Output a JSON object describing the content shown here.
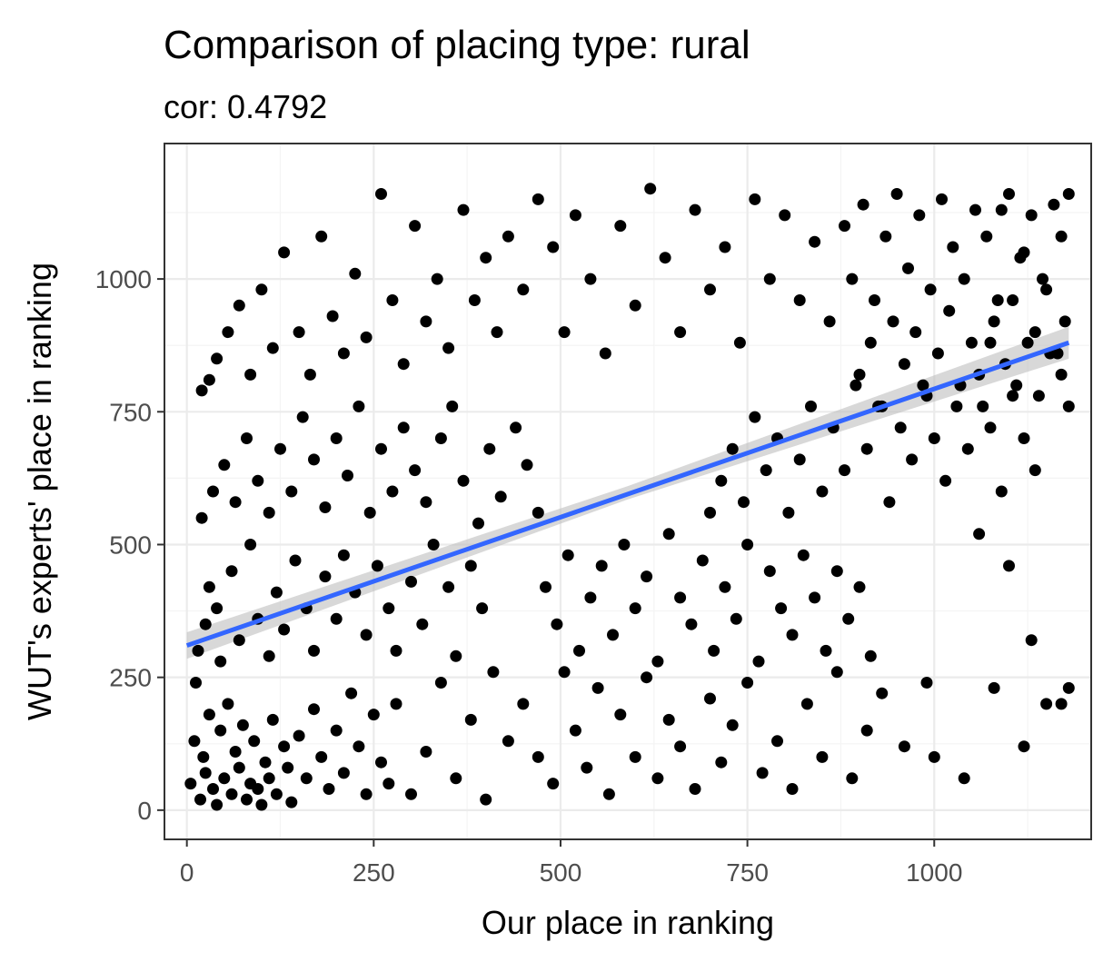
{
  "chart_data": {
    "type": "scatter",
    "title": "Comparison of placing type: rural",
    "subtitle": "cor: 0.4792",
    "xlabel": "Our place in ranking",
    "ylabel": "WUT's experts' place in ranking",
    "xlim": [
      -30,
      1210
    ],
    "ylim": [
      -55,
      1255
    ],
    "x_ticks": [
      0,
      250,
      500,
      750,
      1000
    ],
    "x_tick_labels": [
      "0",
      "250",
      "500",
      "750",
      "1000"
    ],
    "y_ticks": [
      0,
      250,
      500,
      750,
      1000
    ],
    "y_tick_labels": [
      "0",
      "250",
      "500",
      "750",
      "1000"
    ],
    "grid": true,
    "points": [
      [
        5,
        50
      ],
      [
        10,
        130
      ],
      [
        12,
        240
      ],
      [
        18,
        20
      ],
      [
        22,
        100
      ],
      [
        25,
        70
      ],
      [
        30,
        180
      ],
      [
        35,
        40
      ],
      [
        40,
        10
      ],
      [
        45,
        150
      ],
      [
        50,
        60
      ],
      [
        55,
        200
      ],
      [
        60,
        30
      ],
      [
        65,
        110
      ],
      [
        70,
        80
      ],
      [
        75,
        160
      ],
      [
        80,
        20
      ],
      [
        85,
        50
      ],
      [
        90,
        130
      ],
      [
        95,
        40
      ],
      [
        100,
        10
      ],
      [
        105,
        90
      ],
      [
        110,
        60
      ],
      [
        115,
        170
      ],
      [
        120,
        30
      ],
      [
        130,
        120
      ],
      [
        135,
        80
      ],
      [
        140,
        15
      ],
      [
        150,
        140
      ],
      [
        160,
        60
      ],
      [
        170,
        190
      ],
      [
        180,
        100
      ],
      [
        190,
        40
      ],
      [
        200,
        150
      ],
      [
        210,
        70
      ],
      [
        220,
        220
      ],
      [
        230,
        120
      ],
      [
        240,
        30
      ],
      [
        250,
        180
      ],
      [
        260,
        90
      ],
      [
        270,
        50
      ],
      [
        280,
        200
      ],
      [
        300,
        30
      ],
      [
        320,
        110
      ],
      [
        340,
        240
      ],
      [
        360,
        60
      ],
      [
        380,
        170
      ],
      [
        400,
        20
      ],
      [
        410,
        260
      ],
      [
        430,
        130
      ],
      [
        15,
        300
      ],
      [
        25,
        350
      ],
      [
        30,
        420
      ],
      [
        40,
        380
      ],
      [
        45,
        280
      ],
      [
        60,
        450
      ],
      [
        70,
        320
      ],
      [
        85,
        500
      ],
      [
        95,
        360
      ],
      [
        110,
        290
      ],
      [
        120,
        410
      ],
      [
        130,
        340
      ],
      [
        145,
        470
      ],
      [
        160,
        380
      ],
      [
        170,
        300
      ],
      [
        185,
        440
      ],
      [
        200,
        360
      ],
      [
        210,
        480
      ],
      [
        225,
        410
      ],
      [
        240,
        330
      ],
      [
        255,
        460
      ],
      [
        270,
        380
      ],
      [
        280,
        300
      ],
      [
        300,
        430
      ],
      [
        315,
        350
      ],
      [
        330,
        500
      ],
      [
        350,
        420
      ],
      [
        360,
        290
      ],
      [
        380,
        460
      ],
      [
        395,
        380
      ],
      [
        20,
        550
      ],
      [
        35,
        600
      ],
      [
        50,
        650
      ],
      [
        65,
        580
      ],
      [
        80,
        700
      ],
      [
        95,
        620
      ],
      [
        110,
        560
      ],
      [
        125,
        680
      ],
      [
        140,
        600
      ],
      [
        155,
        740
      ],
      [
        170,
        660
      ],
      [
        185,
        570
      ],
      [
        200,
        700
      ],
      [
        215,
        630
      ],
      [
        230,
        760
      ],
      [
        245,
        560
      ],
      [
        260,
        680
      ],
      [
        275,
        600
      ],
      [
        290,
        720
      ],
      [
        305,
        640
      ],
      [
        320,
        580
      ],
      [
        340,
        700
      ],
      [
        355,
        760
      ],
      [
        370,
        620
      ],
      [
        390,
        540
      ],
      [
        405,
        680
      ],
      [
        420,
        590
      ],
      [
        440,
        720
      ],
      [
        455,
        650
      ],
      [
        470,
        560
      ],
      [
        20,
        790
      ],
      [
        30,
        810
      ],
      [
        40,
        850
      ],
      [
        55,
        900
      ],
      [
        70,
        950
      ],
      [
        85,
        820
      ],
      [
        100,
        980
      ],
      [
        115,
        870
      ],
      [
        130,
        1050
      ],
      [
        150,
        900
      ],
      [
        165,
        820
      ],
      [
        180,
        1080
      ],
      [
        195,
        930
      ],
      [
        210,
        860
      ],
      [
        225,
        1010
      ],
      [
        240,
        890
      ],
      [
        260,
        1160
      ],
      [
        275,
        960
      ],
      [
        290,
        840
      ],
      [
        305,
        1100
      ],
      [
        320,
        920
      ],
      [
        335,
        1000
      ],
      [
        350,
        870
      ],
      [
        370,
        1130
      ],
      [
        385,
        960
      ],
      [
        400,
        1040
      ],
      [
        415,
        900
      ],
      [
        430,
        1080
      ],
      [
        450,
        980
      ],
      [
        470,
        1150
      ],
      [
        490,
        1060
      ],
      [
        505,
        900
      ],
      [
        520,
        1120
      ],
      [
        540,
        1000
      ],
      [
        560,
        860
      ],
      [
        580,
        1100
      ],
      [
        600,
        950
      ],
      [
        620,
        1170
      ],
      [
        640,
        1040
      ],
      [
        660,
        900
      ],
      [
        680,
        1130
      ],
      [
        700,
        980
      ],
      [
        720,
        1060
      ],
      [
        740,
        880
      ],
      [
        760,
        1150
      ],
      [
        780,
        1000
      ],
      [
        800,
        1120
      ],
      [
        820,
        960
      ],
      [
        840,
        1070
      ],
      [
        860,
        920
      ],
      [
        480,
        420
      ],
      [
        495,
        350
      ],
      [
        510,
        480
      ],
      [
        525,
        300
      ],
      [
        540,
        400
      ],
      [
        555,
        460
      ],
      [
        570,
        330
      ],
      [
        585,
        500
      ],
      [
        600,
        380
      ],
      [
        615,
        440
      ],
      [
        630,
        280
      ],
      [
        645,
        520
      ],
      [
        660,
        400
      ],
      [
        675,
        350
      ],
      [
        690,
        470
      ],
      [
        705,
        300
      ],
      [
        720,
        420
      ],
      [
        735,
        360
      ],
      [
        750,
        500
      ],
      [
        765,
        280
      ],
      [
        780,
        450
      ],
      [
        795,
        380
      ],
      [
        810,
        330
      ],
      [
        825,
        480
      ],
      [
        840,
        400
      ],
      [
        855,
        300
      ],
      [
        870,
        450
      ],
      [
        885,
        360
      ],
      [
        900,
        420
      ],
      [
        915,
        290
      ],
      [
        450,
        200
      ],
      [
        470,
        100
      ],
      [
        490,
        50
      ],
      [
        505,
        260
      ],
      [
        520,
        150
      ],
      [
        535,
        80
      ],
      [
        550,
        230
      ],
      [
        565,
        30
      ],
      [
        580,
        180
      ],
      [
        600,
        100
      ],
      [
        615,
        250
      ],
      [
        630,
        60
      ],
      [
        645,
        170
      ],
      [
        660,
        120
      ],
      [
        680,
        40
      ],
      [
        700,
        210
      ],
      [
        715,
        90
      ],
      [
        730,
        160
      ],
      [
        750,
        240
      ],
      [
        770,
        70
      ],
      [
        790,
        130
      ],
      [
        810,
        40
      ],
      [
        830,
        200
      ],
      [
        850,
        100
      ],
      [
        870,
        260
      ],
      [
        890,
        60
      ],
      [
        910,
        150
      ],
      [
        930,
        220
      ],
      [
        960,
        120
      ],
      [
        990,
        240
      ],
      [
        700,
        560
      ],
      [
        715,
        620
      ],
      [
        730,
        680
      ],
      [
        745,
        580
      ],
      [
        760,
        740
      ],
      [
        775,
        640
      ],
      [
        790,
        700
      ],
      [
        805,
        560
      ],
      [
        820,
        660
      ],
      [
        835,
        760
      ],
      [
        850,
        600
      ],
      [
        865,
        720
      ],
      [
        880,
        640
      ],
      [
        895,
        800
      ],
      [
        910,
        680
      ],
      [
        925,
        760
      ],
      [
        940,
        580
      ],
      [
        955,
        720
      ],
      [
        970,
        660
      ],
      [
        985,
        800
      ],
      [
        1000,
        700
      ],
      [
        1015,
        620
      ],
      [
        1030,
        760
      ],
      [
        1045,
        680
      ],
      [
        1060,
        820
      ],
      [
        1075,
        720
      ],
      [
        1090,
        600
      ],
      [
        1105,
        780
      ],
      [
        1120,
        700
      ],
      [
        1135,
        640
      ],
      [
        880,
        1100
      ],
      [
        890,
        1000
      ],
      [
        905,
        1140
      ],
      [
        920,
        960
      ],
      [
        935,
        1080
      ],
      [
        950,
        1160
      ],
      [
        965,
        1020
      ],
      [
        980,
        1120
      ],
      [
        995,
        980
      ],
      [
        1010,
        1150
      ],
      [
        1025,
        1060
      ],
      [
        1040,
        1000
      ],
      [
        1055,
        1130
      ],
      [
        1070,
        1080
      ],
      [
        1085,
        960
      ],
      [
        1100,
        1160
      ],
      [
        1115,
        1040
      ],
      [
        1130,
        1120
      ],
      [
        1145,
        1000
      ],
      [
        1160,
        1140
      ],
      [
        1170,
        1080
      ],
      [
        1175,
        920
      ],
      [
        1180,
        1160
      ],
      [
        1165,
        860
      ],
      [
        1150,
        980
      ],
      [
        1135,
        900
      ],
      [
        1120,
        1050
      ],
      [
        1105,
        960
      ],
      [
        1090,
        1130
      ],
      [
        1075,
        880
      ],
      [
        900,
        820
      ],
      [
        915,
        880
      ],
      [
        930,
        760
      ],
      [
        945,
        920
      ],
      [
        960,
        840
      ],
      [
        975,
        900
      ],
      [
        990,
        780
      ],
      [
        1005,
        860
      ],
      [
        1020,
        940
      ],
      [
        1035,
        800
      ],
      [
        1050,
        880
      ],
      [
        1065,
        760
      ],
      [
        1080,
        920
      ],
      [
        1095,
        840
      ],
      [
        1110,
        800
      ],
      [
        1125,
        880
      ],
      [
        1140,
        780
      ],
      [
        1155,
        860
      ],
      [
        1170,
        820
      ],
      [
        1180,
        760
      ],
      [
        1000,
        100
      ],
      [
        1040,
        60
      ],
      [
        1060,
        520
      ],
      [
        1080,
        230
      ],
      [
        1100,
        460
      ],
      [
        1130,
        320
      ],
      [
        1150,
        200
      ],
      [
        1170,
        200
      ],
      [
        1180,
        230
      ],
      [
        1120,
        120
      ]
    ],
    "trend": {
      "x": [
        0,
        1180
      ],
      "y": [
        310,
        880
      ],
      "se_band": [
        [
          0,
          285,
          335
        ],
        [
          590,
          585,
          610
        ],
        [
          1180,
          850,
          910
        ]
      ],
      "line_color": "#3366ff",
      "band_color": "#bebebe"
    },
    "point_color": "#000000"
  }
}
